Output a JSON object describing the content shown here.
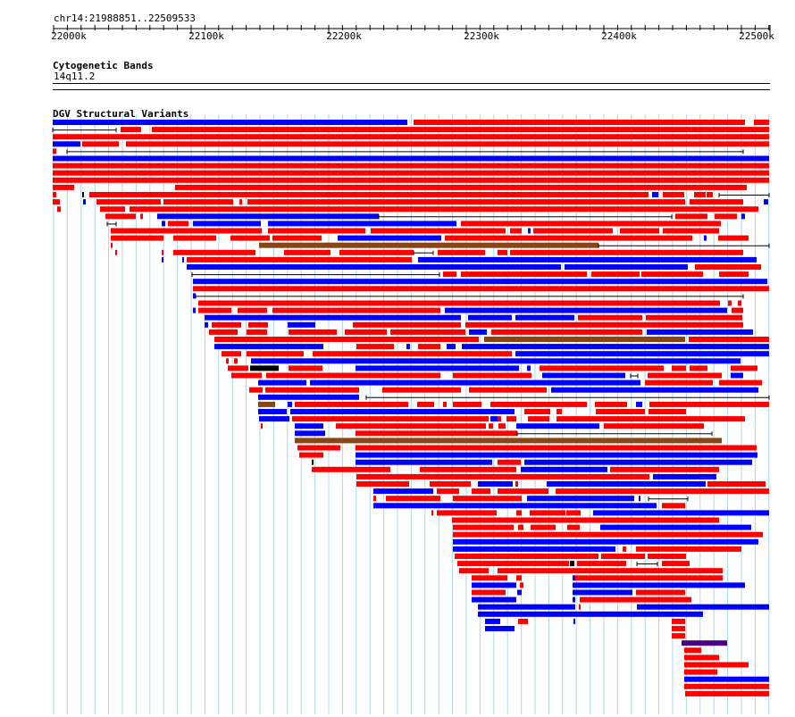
{
  "ruler": {
    "region": "chr14:21988851..22509533",
    "ticks": [
      "22000k",
      "22100k",
      "22200k",
      "22300k",
      "22400k",
      "22500k"
    ]
  },
  "tracks": [
    {
      "title": "Cytogenetic Bands",
      "band_label": "14q11.2"
    },
    {
      "title": "DGV Structural Variants"
    }
  ],
  "colors": {
    "grid": "#add8e6",
    "gain": "#ff0000",
    "loss": "#0000ff",
    "inversion": "#8b4513",
    "complex": "#000000",
    "other": "#4b0082"
  }
}
